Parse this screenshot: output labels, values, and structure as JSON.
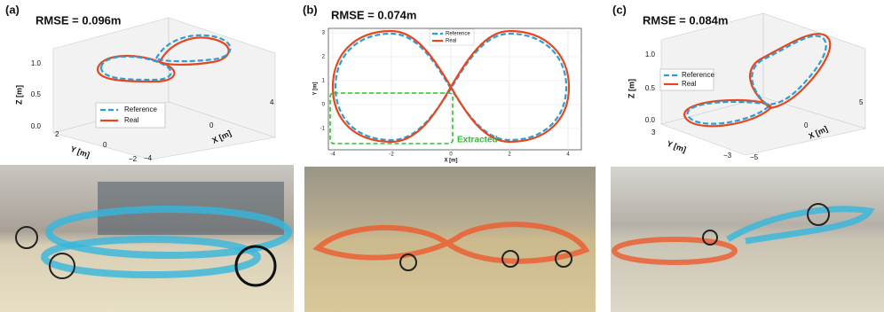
{
  "panels": [
    {
      "label": "(a)",
      "rmse": "RMSE = 0.096m",
      "legend": [
        "Reference",
        "Real"
      ],
      "z_label": "Z [m]",
      "y_label": "Y [m]",
      "x_label": "X [m]",
      "z_ticks": [
        "1.0",
        "0.5",
        "0.0"
      ],
      "y_ticks": [
        "2",
        "0",
        "−2"
      ],
      "x_ticks": [
        "−4",
        "0",
        "4"
      ]
    },
    {
      "label": "(b)",
      "rmse": "RMSE = 0.074m",
      "legend": [
        "Reference",
        "Real"
      ],
      "x_label": "X [m]",
      "y_label": "Y [m]",
      "x_ticks": [
        "-4",
        "-2",
        "0",
        "2",
        "4"
      ],
      "y_ticks": [
        "3",
        "2",
        "1",
        "0",
        "-1"
      ],
      "annotation": "Extracted"
    },
    {
      "label": "(c)",
      "rmse": "RMSE = 0.084m",
      "legend": [
        "Reference",
        "Real"
      ],
      "z_label": "Z [m]",
      "y_label": "Y [m]",
      "x_label": "X [m]",
      "z_ticks": [
        "1.0",
        "0.5",
        "0.0"
      ],
      "y_ticks": [
        "3",
        "−3"
      ],
      "x_ticks": [
        "−5",
        "0",
        "5"
      ]
    }
  ]
}
